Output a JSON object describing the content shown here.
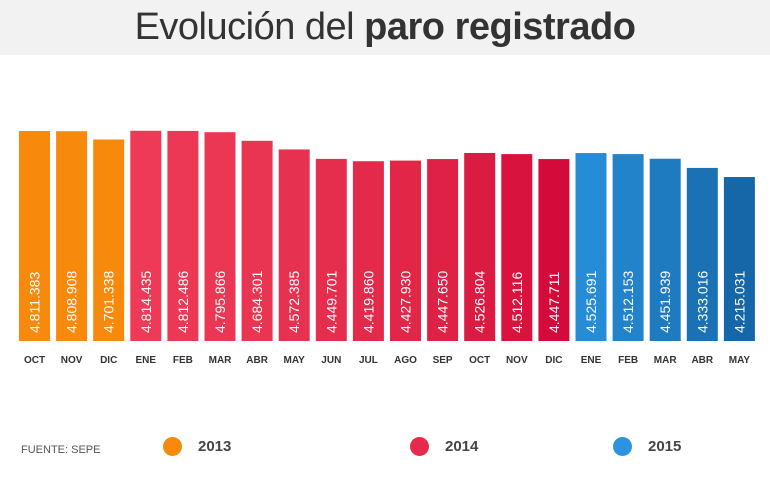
{
  "header": {
    "title_light": "Evolución del ",
    "title_bold": "paro registrado"
  },
  "source": "FUENTE: SEPE",
  "legend": [
    {
      "label": "2013",
      "color": "#F7890C"
    },
    {
      "label": "2014",
      "color": "#E52A4C"
    },
    {
      "label": "2015",
      "color": "#2B93E0"
    }
  ],
  "chart_data": {
    "type": "bar",
    "title": "Evolución del paro registrado",
    "categories": [
      "OCT",
      "NOV",
      "DIC",
      "ENE",
      "FEB",
      "MAR",
      "ABR",
      "MAY",
      "JUN",
      "JUL",
      "AGO",
      "SEP",
      "OCT",
      "NOV",
      "DIC",
      "ENE",
      "FEB",
      "MAR",
      "ABR",
      "MAY"
    ],
    "years": [
      "2013",
      "2013",
      "2013",
      "2014",
      "2014",
      "2014",
      "2014",
      "2014",
      "2014",
      "2014",
      "2014",
      "2014",
      "2014",
      "2014",
      "2014",
      "2015",
      "2015",
      "2015",
      "2015",
      "2015"
    ],
    "values": [
      4811383,
      4808908,
      4701338,
      4814435,
      4812486,
      4795866,
      4684301,
      4572385,
      4449701,
      4419860,
      4427930,
      4447650,
      4526804,
      4512116,
      4447711,
      4525691,
      4512153,
      4451939,
      4333016,
      4215031
    ],
    "value_labels": [
      "4.811.383",
      "4.808.908",
      "4.701.338",
      "4.814.435",
      "4.812.486",
      "4.795.866",
      "4.684.301",
      "4.572.385",
      "4.449.701",
      "4.419.860",
      "4.427.930",
      "4.447.650",
      "4.526.804",
      "4.512.116",
      "4.447.711",
      "4.525.691",
      "4.512.153",
      "4.451.939",
      "4.333.016",
      "4.215.031"
    ],
    "colors": [
      "#F7890C",
      "#F7890C",
      "#F7890C",
      "#EE3A56",
      "#EC3855",
      "#EB3654",
      "#E93452",
      "#E73150",
      "#E52D4D",
      "#E32A4B",
      "#E12648",
      "#DE2145",
      "#DB1B41",
      "#D8143E",
      "#D40A3A",
      "#268CD6",
      "#2283CB",
      "#1E7BC0",
      "#1A71B3",
      "#1667A7"
    ],
    "ylim": [
      2090000,
      4900000
    ],
    "grid": false,
    "legend_position": "bottom"
  }
}
